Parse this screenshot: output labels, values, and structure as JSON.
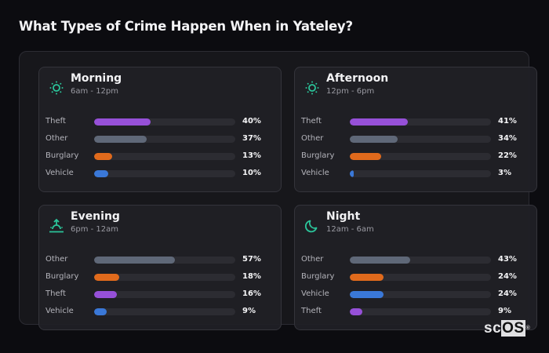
{
  "title": "What Types of Crime Happen When in Yateley?",
  "colors": {
    "Theft": "#9650d8",
    "Other": "#5f6878",
    "Burglary": "#e06a1c",
    "Vehicle": "#3a78d8",
    "accent": "#2bc49a"
  },
  "periods": [
    {
      "name": "Morning",
      "range": "6am - 12pm",
      "icon": "sun-icon",
      "rows": [
        {
          "label": "Theft",
          "value": 40,
          "pct": "40%"
        },
        {
          "label": "Other",
          "value": 37,
          "pct": "37%"
        },
        {
          "label": "Burglary",
          "value": 13,
          "pct": "13%"
        },
        {
          "label": "Vehicle",
          "value": 10,
          "pct": "10%"
        }
      ]
    },
    {
      "name": "Afternoon",
      "range": "12pm - 6pm",
      "icon": "sun-icon",
      "rows": [
        {
          "label": "Theft",
          "value": 41,
          "pct": "41%"
        },
        {
          "label": "Other",
          "value": 34,
          "pct": "34%"
        },
        {
          "label": "Burglary",
          "value": 22,
          "pct": "22%"
        },
        {
          "label": "Vehicle",
          "value": 3,
          "pct": "3%"
        }
      ]
    },
    {
      "name": "Evening",
      "range": "6pm - 12am",
      "icon": "sunset-icon",
      "rows": [
        {
          "label": "Other",
          "value": 57,
          "pct": "57%"
        },
        {
          "label": "Burglary",
          "value": 18,
          "pct": "18%"
        },
        {
          "label": "Theft",
          "value": 16,
          "pct": "16%"
        },
        {
          "label": "Vehicle",
          "value": 9,
          "pct": "9%"
        }
      ]
    },
    {
      "name": "Night",
      "range": "12am - 6am",
      "icon": "moon-icon",
      "rows": [
        {
          "label": "Other",
          "value": 43,
          "pct": "43%"
        },
        {
          "label": "Burglary",
          "value": 24,
          "pct": "24%"
        },
        {
          "label": "Vehicle",
          "value": 24,
          "pct": "24%"
        },
        {
          "label": "Theft",
          "value": 9,
          "pct": "9%"
        }
      ]
    }
  ],
  "logo": {
    "sc": "sc",
    "os": "OS",
    "reg": "®"
  },
  "chart_data": [
    {
      "type": "bar",
      "title": "Morning",
      "subtitle": "6am - 12pm",
      "categories": [
        "Theft",
        "Other",
        "Burglary",
        "Vehicle"
      ],
      "values": [
        40,
        37,
        13,
        10
      ],
      "unit": "%",
      "ylim": [
        0,
        100
      ]
    },
    {
      "type": "bar",
      "title": "Afternoon",
      "subtitle": "12pm - 6pm",
      "categories": [
        "Theft",
        "Other",
        "Burglary",
        "Vehicle"
      ],
      "values": [
        41,
        34,
        22,
        3
      ],
      "unit": "%",
      "ylim": [
        0,
        100
      ]
    },
    {
      "type": "bar",
      "title": "Evening",
      "subtitle": "6pm - 12am",
      "categories": [
        "Other",
        "Burglary",
        "Theft",
        "Vehicle"
      ],
      "values": [
        57,
        18,
        16,
        9
      ],
      "unit": "%",
      "ylim": [
        0,
        100
      ]
    },
    {
      "type": "bar",
      "title": "Night",
      "subtitle": "12am - 6am",
      "categories": [
        "Other",
        "Burglary",
        "Vehicle",
        "Theft"
      ],
      "values": [
        43,
        24,
        24,
        9
      ],
      "unit": "%",
      "ylim": [
        0,
        100
      ]
    }
  ]
}
